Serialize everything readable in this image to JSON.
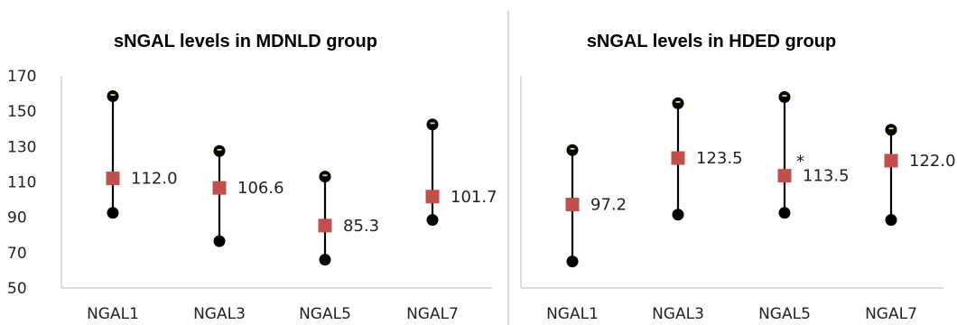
{
  "chart_data": [
    {
      "type": "scatter",
      "title": "sNGAL levels in MDNLD group",
      "categories": [
        "NGAL1",
        "NGAL3",
        "NGAL5",
        "NGAL7"
      ],
      "ylim": [
        50,
        170
      ],
      "yticks": [
        50,
        70,
        90,
        110,
        130,
        150,
        170
      ],
      "grid": false,
      "series": [
        {
          "role": "mean",
          "values": [
            112.0,
            106.6,
            85.3,
            101.7
          ],
          "labels": [
            "112.0",
            "106.6",
            "85.3",
            "101.7"
          ]
        },
        {
          "role": "max",
          "values": [
            158.5,
            127.5,
            113,
            142.5
          ]
        },
        {
          "role": "min",
          "values": [
            92.5,
            76.5,
            66,
            88.5
          ]
        }
      ],
      "annotations": [],
      "colors": {
        "mean": "#c0504d",
        "range": "#000000"
      }
    },
    {
      "type": "scatter",
      "title": "sNGAL levels in HDED group",
      "categories": [
        "NGAL1",
        "NGAL3",
        "NGAL5",
        "NGAL7"
      ],
      "ylim": [
        50,
        170
      ],
      "yticks": [],
      "grid": false,
      "series": [
        {
          "role": "mean",
          "values": [
            97.2,
            123.5,
            113.5,
            122.0
          ],
          "labels": [
            "97.2",
            "123.5",
            "113.5",
            "122.0"
          ]
        },
        {
          "role": "max",
          "values": [
            128,
            154.5,
            158,
            139.5
          ]
        },
        {
          "role": "min",
          "values": [
            65,
            91.5,
            92.5,
            88.5
          ]
        }
      ],
      "annotations": [
        {
          "category": "NGAL5",
          "text": "*"
        }
      ],
      "colors": {
        "mean": "#c0504d",
        "range": "#000000"
      }
    }
  ]
}
